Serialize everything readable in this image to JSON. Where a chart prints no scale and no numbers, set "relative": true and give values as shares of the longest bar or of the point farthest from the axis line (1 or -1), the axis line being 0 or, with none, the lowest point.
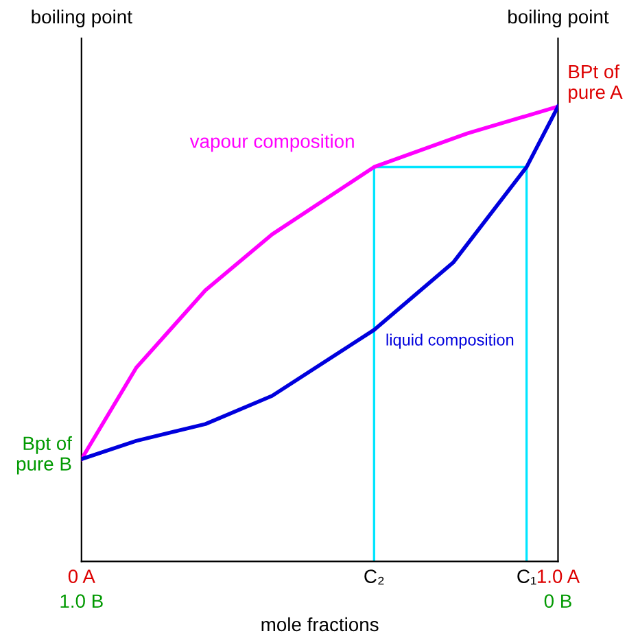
{
  "chart_data": {
    "type": "line",
    "relative": true,
    "xlabel": "mole fractions",
    "ylabel": "boiling point",
    "y2label": "boiling point",
    "series": [
      {
        "name": "vapour composition",
        "color": "#ff00ff",
        "x": [
          0,
          0.115,
          0.26,
          0.4,
          0.614,
          0.81,
          1
        ],
        "values": [
          0.225,
          0.426,
          0.596,
          0.719,
          0.867,
          0.941,
          1
        ]
      },
      {
        "name": "liquid composition",
        "color": "#0000dd",
        "x": [
          0,
          0.115,
          0.26,
          0.4,
          0.614,
          0.78,
          0.934,
          1
        ],
        "values": [
          0.225,
          0.265,
          0.302,
          0.364,
          0.509,
          0.657,
          0.867,
          1
        ]
      },
      {
        "color": "#00e5ff",
        "x": [
          0.614,
          0.614,
          0.934,
          0.934
        ],
        "values": [
          0,
          0.867,
          0.867,
          0
        ]
      }
    ],
    "xlim": [
      0,
      1
    ],
    "xticks": [
      {
        "value": 0,
        "label": "0 A"
      },
      {
        "value": 0.614,
        "label": "C₂"
      },
      {
        "value": 0.934,
        "label": "C₁"
      },
      {
        "value": 1,
        "label": "1.0 A"
      }
    ],
    "annotations": [
      "BPt of\npure A",
      "Bpt of\npure B",
      "1.0 B",
      "0 B"
    ],
    "legend": false,
    "marker": "none",
    "line_style": "solid"
  }
}
